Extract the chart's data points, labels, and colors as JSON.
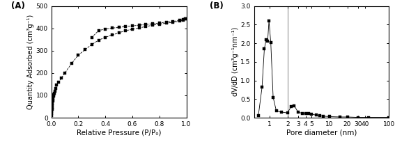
{
  "panel_a_label": "(A)",
  "panel_b_label": "(B)",
  "ylabel_a": "Quantity Adsorbed (cm³g⁻¹)",
  "xlabel_a": "Relative Pressure (P/P₀)",
  "ylabel_b": "dV/dD (cm³g⁻¹nm⁻¹)",
  "xlabel_b": "Pore diameter (nm)",
  "adsorption_x": [
    0.001,
    0.002,
    0.003,
    0.004,
    0.005,
    0.006,
    0.007,
    0.008,
    0.01,
    0.012,
    0.015,
    0.018,
    0.021,
    0.025,
    0.03,
    0.04,
    0.055,
    0.075,
    0.1,
    0.15,
    0.2,
    0.25,
    0.3,
    0.35,
    0.4,
    0.45,
    0.5,
    0.55,
    0.6,
    0.65,
    0.7,
    0.75,
    0.8,
    0.85,
    0.9,
    0.95,
    0.975,
    0.99
  ],
  "adsorption_y": [
    10,
    18,
    25,
    32,
    38,
    45,
    55,
    62,
    75,
    85,
    96,
    103,
    110,
    120,
    130,
    148,
    160,
    178,
    200,
    243,
    280,
    305,
    328,
    347,
    360,
    370,
    380,
    390,
    395,
    402,
    408,
    414,
    419,
    423,
    427,
    432,
    437,
    442
  ],
  "desorption_x": [
    0.99,
    0.975,
    0.95,
    0.9,
    0.85,
    0.8,
    0.75,
    0.7,
    0.65,
    0.6,
    0.55,
    0.5,
    0.45,
    0.4,
    0.35,
    0.3
  ],
  "desorption_y": [
    442,
    439,
    435,
    431,
    428,
    424,
    420,
    417,
    414,
    411,
    408,
    404,
    401,
    397,
    390,
    360
  ],
  "psd_x": [
    0.65,
    0.75,
    0.82,
    0.88,
    0.93,
    0.98,
    1.05,
    1.15,
    1.3,
    1.6,
    2.0,
    2.3,
    2.6,
    3.0,
    3.5,
    4.0,
    4.5,
    5.0,
    6.0,
    7.0,
    8.0,
    10.0,
    15.0,
    20.0,
    30.0,
    45.0,
    100.0
  ],
  "psd_y": [
    0.05,
    0.82,
    1.85,
    2.1,
    2.05,
    2.6,
    2.02,
    0.55,
    0.18,
    0.15,
    0.13,
    0.3,
    0.32,
    0.15,
    0.12,
    0.11,
    0.11,
    0.1,
    0.07,
    0.05,
    0.04,
    0.03,
    0.02,
    0.02,
    0.01,
    0.01,
    0.01
  ],
  "vline_x": 2.0,
  "ylim_a": [
    0,
    500
  ],
  "xlim_a": [
    0.0,
    1.0
  ],
  "ylim_b": [
    0.0,
    3.0
  ],
  "xlim_b_log_min": 0.55,
  "xlim_b_log_max": 100,
  "yticks_a": [
    0,
    100,
    200,
    300,
    400,
    500
  ],
  "yticks_b": [
    0.0,
    0.5,
    1.0,
    1.5,
    2.0,
    2.5,
    3.0
  ],
  "xticks_a": [
    0.0,
    0.2,
    0.4,
    0.6,
    0.8,
    1.0
  ],
  "xticks_b": [
    1,
    2,
    3,
    4,
    5,
    10,
    20,
    30,
    40,
    100
  ],
  "xticklabels_b": [
    "1",
    "2",
    "3",
    "4",
    "5",
    "10",
    "20",
    "30",
    "40",
    "100"
  ],
  "marker_color": "black",
  "line_style_a": "--",
  "line_style_b": "-",
  "line_width": 0.6,
  "marker_size": 3.2
}
